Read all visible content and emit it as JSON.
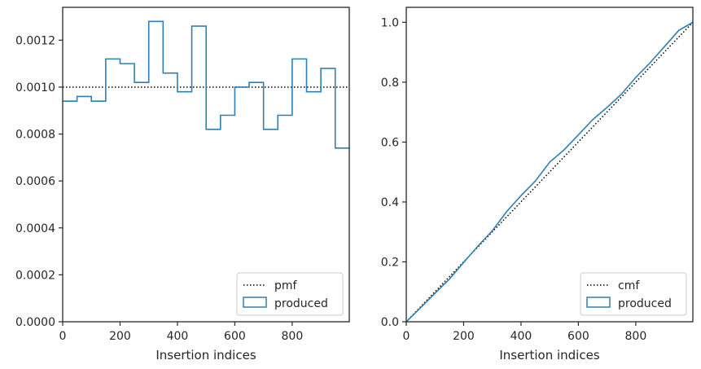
{
  "chart_data": [
    {
      "type": "histogram-step",
      "title": "",
      "xlabel": "Insertion indices",
      "ylabel": "",
      "xlim": [
        0,
        999
      ],
      "ylim": [
        0,
        0.00134
      ],
      "xticks": [
        0,
        200,
        400,
        600,
        800
      ],
      "yticks": [
        0.0,
        0.0002,
        0.0004,
        0.0006,
        0.0008,
        0.001,
        0.0012
      ],
      "ytick_labels": [
        "0.0000",
        "0.0002",
        "0.0004",
        "0.0006",
        "0.0008",
        "0.0010",
        "0.0012"
      ],
      "grid": false,
      "legend_placement": "lower-right",
      "reference": {
        "name": "pmf",
        "value": 0.001,
        "style": "dotted",
        "color": "#000000"
      },
      "series": [
        {
          "name": "produced",
          "color": "#2f7fb5",
          "bin_edges": [
            0,
            50,
            100,
            150,
            200,
            250,
            300,
            350,
            400,
            450,
            500,
            550,
            600,
            650,
            700,
            750,
            800,
            850,
            900,
            950,
            1000
          ],
          "values": [
            0.00094,
            0.00096,
            0.00094,
            0.00112,
            0.0011,
            0.00102,
            0.00128,
            0.00106,
            0.00098,
            0.00126,
            0.00082,
            0.00088,
            0.001,
            0.00102,
            0.00082,
            0.00088,
            0.00112,
            0.00098,
            0.00108,
            0.00074
          ]
        }
      ]
    },
    {
      "type": "line",
      "title": "",
      "xlabel": "Insertion indices",
      "ylabel": "",
      "xlim": [
        0,
        999
      ],
      "ylim": [
        0,
        1.05
      ],
      "xticks": [
        0,
        200,
        400,
        600,
        800
      ],
      "yticks": [
        0.0,
        0.2,
        0.4,
        0.6,
        0.8,
        1.0
      ],
      "ytick_labels": [
        "0.0",
        "0.2",
        "0.4",
        "0.6",
        "0.8",
        "1.0"
      ],
      "grid": false,
      "legend_placement": "lower-right",
      "reference": {
        "name": "cmf",
        "x": [
          0,
          999
        ],
        "y": [
          0.0,
          1.0
        ],
        "style": "dotted",
        "color": "#000000"
      },
      "series": [
        {
          "name": "produced",
          "color": "#2f7fb5",
          "x": [
            0,
            50,
            100,
            150,
            200,
            250,
            300,
            350,
            400,
            450,
            500,
            550,
            600,
            650,
            700,
            750,
            800,
            850,
            900,
            950,
            999
          ],
          "y": [
            0.0,
            0.047,
            0.095,
            0.142,
            0.198,
            0.253,
            0.304,
            0.368,
            0.421,
            0.47,
            0.533,
            0.574,
            0.624,
            0.675,
            0.716,
            0.76,
            0.816,
            0.865,
            0.919,
            0.973,
            1.0
          ]
        }
      ]
    }
  ]
}
